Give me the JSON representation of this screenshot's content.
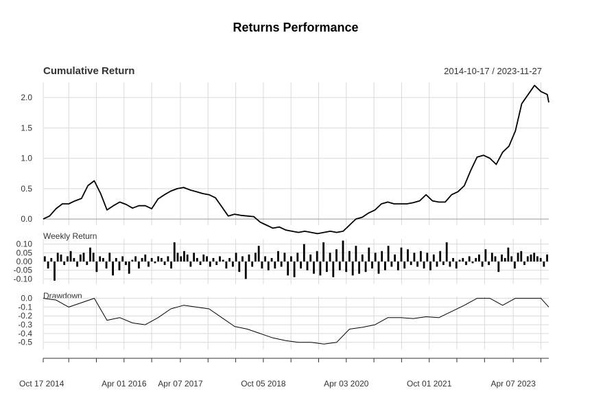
{
  "title": "Returns Performance",
  "date_range": "2014-10-17 / 2023-11-27",
  "chart_data": [
    {
      "type": "line",
      "title": "Cumulative Return",
      "x_start": "2014-10-17",
      "x_end": "2023-11-27",
      "ylim": [
        -0.1,
        2.25
      ],
      "yticks": [
        "0.0",
        "0.5",
        "1.0",
        "1.5",
        "2.0"
      ],
      "grid": true,
      "x": [
        "2014-10-17",
        "2014-11-28",
        "2015-01-09",
        "2015-02-20",
        "2015-04-03",
        "2015-05-15",
        "2015-06-26",
        "2015-08-07",
        "2015-09-18",
        "2015-10-30",
        "2015-12-11",
        "2016-01-22",
        "2016-03-04",
        "2016-04-15",
        "2016-05-27",
        "2016-07-08",
        "2016-08-19",
        "2016-09-30",
        "2016-11-11",
        "2016-12-23",
        "2017-02-03",
        "2017-03-17",
        "2017-04-28",
        "2017-06-09",
        "2017-07-21",
        "2017-09-01",
        "2017-10-13",
        "2017-11-24",
        "2018-01-05",
        "2018-02-16",
        "2018-03-30",
        "2018-05-11",
        "2018-06-22",
        "2018-08-03",
        "2018-09-14",
        "2018-10-26",
        "2018-12-07",
        "2019-01-18",
        "2019-03-01",
        "2019-04-12",
        "2019-05-24",
        "2019-07-05",
        "2019-08-16",
        "2019-09-27",
        "2019-11-08",
        "2019-12-20",
        "2020-01-31",
        "2020-03-13",
        "2020-04-24",
        "2020-06-05",
        "2020-07-17",
        "2020-08-28",
        "2020-10-09",
        "2020-11-20",
        "2021-01-01",
        "2021-02-12",
        "2021-03-26",
        "2021-05-07",
        "2021-06-18",
        "2021-07-30",
        "2021-09-10",
        "2021-10-22",
        "2021-12-03",
        "2022-01-14",
        "2022-02-25",
        "2022-04-08",
        "2022-05-20",
        "2022-07-01",
        "2022-08-12",
        "2022-09-23",
        "2022-11-04",
        "2022-12-16",
        "2023-01-27",
        "2023-03-10",
        "2023-04-21",
        "2023-06-02",
        "2023-07-14",
        "2023-08-25",
        "2023-10-06",
        "2023-11-17",
        "2023-11-27"
      ],
      "values": [
        0.0,
        0.05,
        0.17,
        0.25,
        0.25,
        0.3,
        0.34,
        0.55,
        0.63,
        0.42,
        0.15,
        0.22,
        0.28,
        0.24,
        0.18,
        0.22,
        0.22,
        0.17,
        0.33,
        0.4,
        0.46,
        0.5,
        0.52,
        0.48,
        0.45,
        0.42,
        0.4,
        0.35,
        0.2,
        0.05,
        0.08,
        0.06,
        0.05,
        0.04,
        -0.05,
        -0.1,
        -0.15,
        -0.13,
        -0.18,
        -0.2,
        -0.22,
        -0.2,
        -0.22,
        -0.24,
        -0.22,
        -0.2,
        -0.22,
        -0.2,
        -0.1,
        0.0,
        0.03,
        0.1,
        0.15,
        0.25,
        0.28,
        0.25,
        0.25,
        0.25,
        0.27,
        0.3,
        0.4,
        0.3,
        0.28,
        0.28,
        0.4,
        0.45,
        0.55,
        0.8,
        1.02,
        1.05,
        1.0,
        0.9,
        1.1,
        1.2,
        1.45,
        1.9,
        2.05,
        2.2,
        2.1,
        2.05,
        1.92
      ]
    },
    {
      "type": "bar",
      "title": "Weekly Return",
      "ylim": [
        -0.13,
        0.13
      ],
      "yticks": [
        "0.10",
        "0.05",
        "0.00",
        "-0.05",
        "-0.10"
      ],
      "grid": true,
      "x_start": "2014-10-17",
      "x_end": "2023-11-27",
      "values": [
        0.03,
        -0.04,
        0.02,
        -0.11,
        0.05,
        0.04,
        -0.02,
        0.03,
        0.06,
        0.02,
        -0.03,
        0.04,
        0.05,
        -0.02,
        0.08,
        0.05,
        -0.06,
        0.03,
        0.02,
        -0.04,
        0.05,
        -0.08,
        0.02,
        -0.05,
        0.03,
        -0.02,
        -0.07,
        0.01,
        0.03,
        -0.04,
        0.02,
        0.04,
        -0.03,
        0.02,
        -0.01,
        0.03,
        0.02,
        -0.02,
        0.03,
        -0.04,
        0.11,
        0.05,
        0.03,
        0.06,
        0.04,
        -0.03,
        0.05,
        0.02,
        -0.02,
        0.04,
        0.03,
        -0.03,
        0.02,
        -0.02,
        0.03,
        0.01,
        -0.04,
        0.02,
        -0.03,
        0.05,
        -0.06,
        0.03,
        -0.1,
        0.04,
        -0.03,
        0.05,
        0.09,
        -0.04,
        0.03,
        -0.05,
        0.02,
        -0.04,
        0.06,
        -0.03,
        0.05,
        -0.08,
        0.03,
        -0.09,
        0.05,
        -0.04,
        0.1,
        -0.05,
        0.04,
        -0.07,
        0.06,
        -0.08,
        0.11,
        -0.06,
        0.05,
        -0.09,
        0.07,
        -0.05,
        0.12,
        -0.06,
        0.06,
        -0.08,
        0.09,
        -0.07,
        0.04,
        -0.06,
        0.08,
        -0.04,
        0.05,
        -0.07,
        0.06,
        -0.05,
        0.09,
        -0.03,
        0.04,
        -0.05,
        0.08,
        -0.04,
        0.07,
        -0.02,
        0.05,
        -0.03,
        0.06,
        -0.04,
        0.05,
        -0.05,
        0.04,
        -0.03,
        0.06,
        -0.02,
        0.11,
        -0.03,
        0.02,
        -0.04,
        0.01,
        0.02,
        -0.02,
        0.03,
        -0.01,
        0.02,
        0.04,
        -0.03,
        0.07,
        -0.02,
        0.05,
        0.03,
        -0.06,
        0.04,
        0.02,
        0.08,
        0.03,
        -0.04,
        0.05,
        0.06,
        -0.02,
        0.03,
        0.04,
        0.05,
        0.03,
        0.02,
        -0.03,
        0.04
      ]
    },
    {
      "type": "line",
      "title": "Drawdown",
      "ylim": [
        -0.58,
        0.02
      ],
      "yticks": [
        "0.0",
        "-0.1",
        "-0.2",
        "-0.3",
        "-0.4",
        "-0.5"
      ],
      "grid": true,
      "x": [
        "2014-10-17",
        "2015-01-09",
        "2015-04-03",
        "2015-06-26",
        "2015-09-18",
        "2015-12-11",
        "2016-03-04",
        "2016-05-27",
        "2016-08-19",
        "2016-11-11",
        "2017-02-03",
        "2017-04-28",
        "2017-07-21",
        "2017-10-13",
        "2018-01-05",
        "2018-03-30",
        "2018-06-22",
        "2018-09-14",
        "2018-12-07",
        "2019-03-01",
        "2019-05-24",
        "2019-08-16",
        "2019-11-08",
        "2020-01-31",
        "2020-04-24",
        "2020-07-17",
        "2020-10-09",
        "2021-01-01",
        "2021-03-26",
        "2021-06-18",
        "2021-09-10",
        "2021-12-03",
        "2022-02-25",
        "2022-05-20",
        "2022-08-12",
        "2022-11-04",
        "2023-01-27",
        "2023-04-21",
        "2023-07-14",
        "2023-10-06",
        "2023-11-27"
      ],
      "values": [
        0.0,
        -0.02,
        -0.1,
        -0.05,
        0.0,
        -0.25,
        -0.22,
        -0.28,
        -0.3,
        -0.22,
        -0.12,
        -0.08,
        -0.1,
        -0.12,
        -0.22,
        -0.32,
        -0.35,
        -0.4,
        -0.45,
        -0.48,
        -0.5,
        -0.5,
        -0.52,
        -0.5,
        -0.35,
        -0.33,
        -0.3,
        -0.22,
        -0.22,
        -0.23,
        -0.21,
        -0.22,
        -0.15,
        -0.08,
        0.0,
        0.0,
        -0.08,
        0.0,
        0.0,
        0.0,
        -0.1
      ]
    }
  ],
  "x_axis": {
    "tick_labels": [
      "Oct 17 2014",
      "Apr 01 2016",
      "Apr 07 2017",
      "Oct 05 2018",
      "Apr 03 2020",
      "Oct 01 2021",
      "Apr 07 2023"
    ],
    "tick_dates": [
      "2014-10-17",
      "2016-04-01",
      "2017-04-07",
      "2018-10-05",
      "2020-04-03",
      "2021-10-01",
      "2023-04-07"
    ]
  }
}
